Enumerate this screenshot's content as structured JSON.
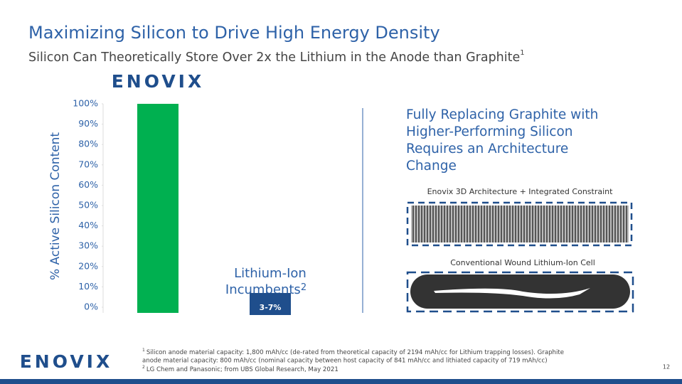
{
  "header": {
    "title": "Maximizing Silicon to Drive High Energy Density",
    "subtitle": "Silicon Can Theoretically Store Over 2x the Lithium in the Anode than Graphite",
    "subtitle_note": "1"
  },
  "chart_data": {
    "type": "bar",
    "categories": [
      "ENOVIX",
      "Lithium-Ion Incumbents"
    ],
    "values": [
      100,
      null
    ],
    "color": "#00b050",
    "category_label_lines": [
      "Lithium-Ion",
      "Incumbents"
    ],
    "category_note": "2",
    "incumbent_range": {
      "low": 3,
      "high": 7,
      "label": "3-7%"
    },
    "ylabel": "% Active Silicon Content",
    "ylim": [
      0,
      100
    ],
    "yticks": [
      {
        "value": 0,
        "label": "0%"
      },
      {
        "value": 10,
        "label": "10%"
      },
      {
        "value": 20,
        "label": "20%"
      },
      {
        "value": 30,
        "label": "30%"
      },
      {
        "value": 40,
        "label": "40%"
      },
      {
        "value": 50,
        "label": "50%"
      },
      {
        "value": 60,
        "label": "60%"
      },
      {
        "value": 70,
        "label": "70%"
      },
      {
        "value": 80,
        "label": "80%"
      },
      {
        "value": 90,
        "label": "90%"
      },
      {
        "value": 100,
        "label": "100%"
      }
    ],
    "grid": false
  },
  "right_panel": {
    "heading_lines": [
      "Fully Replacing Graphite with",
      "Higher-Performing Silicon",
      "Requires an Architecture",
      "Change"
    ],
    "image_captions": [
      "Enovix 3D Architecture + Integrated Constraint",
      "Conventional Wound Lithium-Ion Cell"
    ]
  },
  "footnotes": [
    {
      "marker": "1",
      "lines": [
        "Silicon anode material capacity: 1,800 mAh/cc (de-rated from theoretical capacity of 2194 mAh/cc for Lithium trapping losses). Graphite",
        "anode material capacity: 800 mAh/cc (nominal capacity between host capacity of 841 mAh/cc and lithiated capacity of 719 mAh/cc)"
      ]
    },
    {
      "marker": "2",
      "lines": [
        "LG Chem and Panasonic; from UBS Global Research, May 2021"
      ]
    }
  ],
  "footer": {
    "logo": "ENOVIX",
    "page_number": "12"
  }
}
